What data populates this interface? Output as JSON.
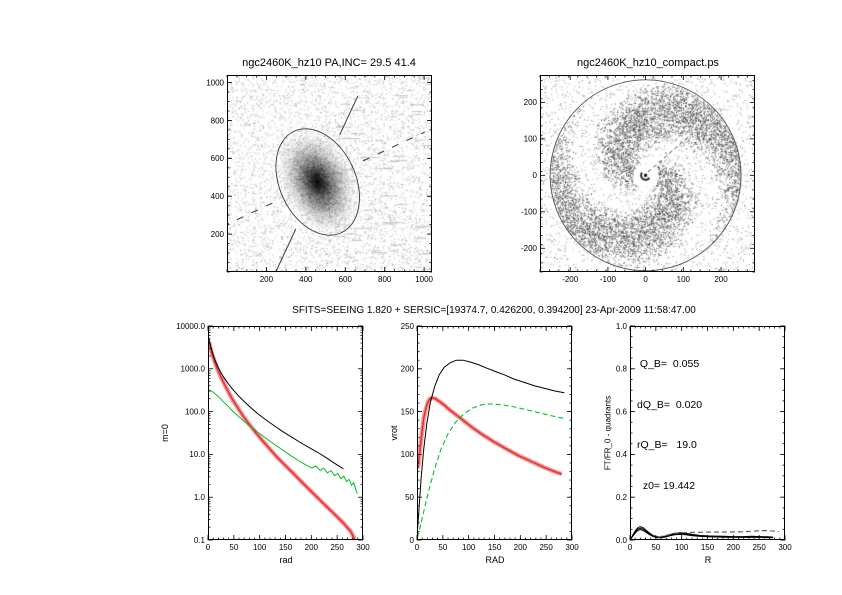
{
  "figure": {
    "bg": "#ffffff",
    "shared_title": "SFITS=SEEING 1.820 + SERSIC=[19374.7, 0.426200, 0.394200]  23-Apr-2009 11:58:47.00"
  },
  "chart_data": [
    {
      "id": "galaxy",
      "type": "heatmap",
      "title": "ngc2460K_hz10 PA,INC= 29.5 41.4",
      "content": "noisy grayscale image of galaxy ngc2460 with fitted ellipse overlay",
      "xlim": [
        0,
        1040
      ],
      "ylim": [
        0,
        1040
      ],
      "xticks": [
        200,
        400,
        600,
        800,
        1000
      ],
      "yticks": [
        200,
        400,
        600,
        800,
        1000
      ],
      "fit_ellipse": {
        "cx": 460,
        "cy": 475,
        "pa_deg": 25
      },
      "pa": 29.5,
      "inc": 41.4
    },
    {
      "id": "residual",
      "type": "heatmap",
      "title": "ngc2460K_hz10_compact.ps",
      "content": "spiral residual map inside circular aperture",
      "xlim": [
        -280,
        290
      ],
      "ylim": [
        -265,
        275
      ],
      "xticks": [
        -200,
        -100,
        0,
        100,
        200
      ],
      "yticks": [
        -200,
        -100,
        0,
        100,
        200
      ]
    },
    {
      "id": "profile",
      "type": "line",
      "xlabel": "rad",
      "ylabel": "m=0",
      "xlim": [
        0,
        300
      ],
      "yscale": "log",
      "ylim": [
        0.1,
        10000
      ],
      "xticks": [
        0,
        50,
        100,
        150,
        200,
        250,
        300
      ],
      "ytick_labels": [
        "10000.0",
        "1000.0",
        "100.0",
        "10.0",
        "1.0",
        "0.1"
      ],
      "series": [
        {
          "name": "observed-profile",
          "color": "#e23333",
          "band_color": "#f58a8a",
          "style": "band",
          "x": [
            2,
            4,
            6,
            8,
            11,
            14,
            18,
            23,
            28,
            34,
            41,
            49,
            58,
            68,
            79,
            91,
            104,
            118,
            133,
            149,
            166,
            184,
            203,
            223,
            243,
            262,
            276,
            284
          ],
          "y": [
            4200,
            3300,
            2650,
            2150,
            1700,
            1350,
            1000,
            730,
            540,
            385,
            265,
            180,
            120,
            79,
            52,
            34,
            22,
            14,
            8.8,
            5.6,
            3.5,
            2.1,
            1.25,
            0.72,
            0.42,
            0.25,
            0.16,
            0.105
          ]
        },
        {
          "name": "model-profile",
          "color": "#000000",
          "style": "thin",
          "x": [
            1,
            3,
            6,
            9,
            13,
            18,
            24,
            31,
            39,
            48,
            58,
            70,
            83,
            97,
            112,
            128,
            145,
            163,
            182,
            200,
            216,
            230,
            243,
            254,
            262
          ],
          "y": [
            5600,
            4300,
            3100,
            2300,
            1650,
            1180,
            850,
            620,
            450,
            330,
            240,
            172,
            123,
            88,
            64,
            47,
            34,
            25,
            18,
            13.5,
            10.5,
            8.2,
            6.4,
            5.3,
            4.6
          ]
        },
        {
          "name": "sersic-profile",
          "color": "#00c020",
          "style": "thin",
          "x": [
            0,
            5,
            11,
            18,
            27,
            37,
            48,
            60,
            74,
            89,
            105,
            122,
            140,
            158,
            175,
            190,
            201,
            209,
            217,
            224,
            231,
            238,
            245,
            251,
            257,
            263,
            268,
            273,
            278,
            282,
            286,
            289
          ],
          "y": [
            330,
            312,
            280,
            235,
            185,
            140,
            103,
            75,
            54,
            38.5,
            27.5,
            19.5,
            13.8,
            9.8,
            7.2,
            5.6,
            4.8,
            5.4,
            4.2,
            4.8,
            3.7,
            4.2,
            3.2,
            3.6,
            2.7,
            3.1,
            2.3,
            2.6,
            1.9,
            2.2,
            1.5,
            1.2
          ]
        }
      ]
    },
    {
      "id": "rotation",
      "type": "line",
      "xlabel": "RAD",
      "ylabel": "vrot",
      "xlim": [
        0,
        300
      ],
      "ylim": [
        0,
        250
      ],
      "xticks": [
        0,
        50,
        100,
        150,
        200,
        250,
        300
      ],
      "yticks": [
        0,
        50,
        100,
        150,
        200,
        250
      ],
      "series": [
        {
          "name": "observed-rotation",
          "color": "#e23333",
          "band_color": "#f58a8a",
          "style": "band",
          "x": [
            2,
            4,
            7,
            10,
            13,
            17,
            21,
            25,
            30,
            36,
            43,
            52,
            63,
            76,
            91,
            108,
            127,
            148,
            171,
            195,
            220,
            245,
            266,
            280
          ],
          "y": [
            84,
            96,
            112,
            128,
            142,
            153,
            161,
            165,
            166,
            165,
            162,
            158,
            152,
            146,
            139,
            131,
            123,
            115,
            107,
            99,
            92,
            85,
            80,
            77
          ]
        },
        {
          "name": "model-rotation",
          "color": "#000000",
          "style": "thin",
          "x": [
            1,
            4,
            8,
            13,
            19,
            26,
            34,
            43,
            53,
            64,
            76,
            89,
            103,
            118,
            134,
            151,
            169,
            188,
            208,
            228,
            248,
            268,
            285
          ],
          "y": [
            12,
            38,
            72,
            106,
            136,
            161,
            179,
            193,
            202,
            207,
            210,
            210,
            208,
            205,
            201,
            197,
            193,
            188,
            184,
            180,
            177,
            174,
            172
          ]
        },
        {
          "name": "sersic-rotation",
          "color": "#00c020",
          "style": "dashed",
          "x": [
            1,
            6,
            13,
            22,
            33,
            45,
            59,
            74,
            90,
            107,
            125,
            144,
            164,
            185,
            206,
            227,
            248,
            268,
            285
          ],
          "y": [
            3,
            15,
            33,
            56,
            81,
            104,
            123,
            137,
            147,
            154,
            158,
            159,
            158,
            156,
            153,
            150,
            147,
            144,
            142
          ]
        }
      ]
    },
    {
      "id": "fourier",
      "type": "line",
      "xlabel": "R",
      "ylabel": "FT/FR_0 - quadrants",
      "xlim": [
        0,
        300
      ],
      "ylim": [
        0,
        1
      ],
      "xticks": [
        0,
        50,
        100,
        150,
        200,
        250,
        300
      ],
      "ytick_labels": [
        "0.0",
        "0.2",
        "0.4",
        "0.6",
        "0.8",
        "1.0"
      ],
      "annotations": [
        " Q_B=  0.055",
        "dQ_B=  0.020",
        "rQ_B=   19.0",
        "  z0= 19.442"
      ],
      "q_b": 0.055,
      "dq_b": 0.02,
      "rq_b": 19.0,
      "z0": 19.442,
      "quadrant_offsets": [
        0.007,
        0,
        -0.006
      ],
      "series": [
        {
          "name": "quadrant-amplitude",
          "color": "#000000",
          "style": "quadrants",
          "x": [
            0,
            4,
            8,
            12,
            16,
            20,
            25,
            31,
            38,
            45,
            52,
            60,
            68,
            77,
            87,
            97,
            108,
            121,
            135,
            150,
            166,
            183,
            200,
            218,
            236,
            253,
            267,
            277
          ],
          "y": [
            0.002,
            0.015,
            0.03,
            0.043,
            0.052,
            0.055,
            0.051,
            0.041,
            0.028,
            0.018,
            0.013,
            0.012,
            0.016,
            0.022,
            0.028,
            0.03,
            0.028,
            0.023,
            0.019,
            0.017,
            0.016,
            0.015,
            0.014,
            0.014,
            0.015,
            0.014,
            0.013,
            0.012
          ]
        },
        {
          "name": "global-amplitude",
          "color": "#555555",
          "style": "dashed",
          "x": [
            55,
            68,
            82,
            96,
            112,
            130,
            150,
            170,
            190,
            210,
            230,
            248,
            262,
            275,
            288
          ],
          "y": [
            0.013,
            0.021,
            0.028,
            0.033,
            0.035,
            0.036,
            0.037,
            0.037,
            0.038,
            0.038,
            0.04,
            0.043,
            0.044,
            0.042,
            0.04
          ]
        }
      ]
    }
  ]
}
